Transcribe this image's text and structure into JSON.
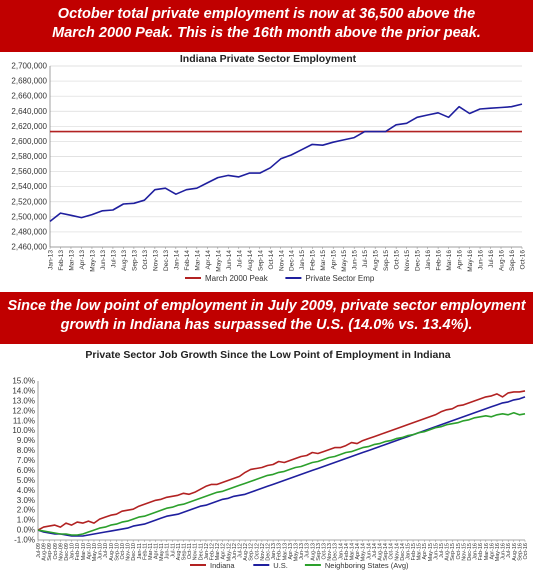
{
  "banners": {
    "top": [
      "October total private employment is now at 36,500 above the",
      "March 2000 Peak. This is the 16th  month above the prior peak."
    ],
    "middle": [
      "Since the low point of employment in July 2009, private sector employment",
      "growth in Indiana has surpassed the U.S. (14.0% vs. 13.4%)."
    ]
  },
  "colors": {
    "banner": "#c00000",
    "dark_red": "#b22222",
    "navy": "#1f1f9e",
    "green": "#2ca02c"
  },
  "chart_data": [
    {
      "type": "line",
      "title": "Indiana Private Sector Employment",
      "categories": [
        "Jan-13",
        "Feb-13",
        "Mar-13",
        "Apr-13",
        "May-13",
        "Jun-13",
        "Jul-13",
        "Aug-13",
        "Sep-13",
        "Oct-13",
        "Nov-13",
        "Dec-13",
        "Jan-14",
        "Feb-14",
        "Mar-14",
        "Apr-14",
        "May-14",
        "Jun-14",
        "Jul-14",
        "Aug-14",
        "Sep-14",
        "Oct-14",
        "Nov-14",
        "Dec-14",
        "Jan-15",
        "Feb-15",
        "Mar-15",
        "Apr-15",
        "May-15",
        "Jun-15",
        "Jul-15",
        "Aug-15",
        "Sep-15",
        "Oct-15",
        "Nov-15",
        "Dec-15",
        "Jan-16",
        "Feb-16",
        "Mar-16",
        "Apr-16",
        "May-16",
        "Jun-16",
        "Jul-16",
        "Aug-16",
        "Sep-16",
        "Oct-16"
      ],
      "series": [
        {
          "name": "March 2000 Peak",
          "color": "#b22222",
          "values": [
            2613000,
            2613000,
            2613000,
            2613000,
            2613000,
            2613000,
            2613000,
            2613000,
            2613000,
            2613000,
            2613000,
            2613000,
            2613000,
            2613000,
            2613000,
            2613000,
            2613000,
            2613000,
            2613000,
            2613000,
            2613000,
            2613000,
            2613000,
            2613000,
            2613000,
            2613000,
            2613000,
            2613000,
            2613000,
            2613000,
            2613000,
            2613000,
            2613000,
            2613000,
            2613000,
            2613000,
            2613000,
            2613000,
            2613000,
            2613000,
            2613000,
            2613000,
            2613000,
            2613000,
            2613000,
            2613000
          ]
        },
        {
          "name": "Private Sector Emp",
          "color": "#1f1f9e",
          "values": [
            2494000,
            2505000,
            2502000,
            2499000,
            2503000,
            2508000,
            2509000,
            2517000,
            2518000,
            2522000,
            2536000,
            2538000,
            2530000,
            2536000,
            2538000,
            2545000,
            2552000,
            2555000,
            2553000,
            2558000,
            2558000,
            2565000,
            2577000,
            2582000,
            2589000,
            2596000,
            2595000,
            2599000,
            2602000,
            2605000,
            2613000,
            2613000,
            2613000,
            2622000,
            2624000,
            2632000,
            2635000,
            2638000,
            2632000,
            2646000,
            2637000,
            2643000,
            2644000,
            2645000,
            2646000,
            2649500
          ]
        }
      ],
      "yticks": [
        "2,460,000",
        "2,480,000",
        "2,500,000",
        "2,520,000",
        "2,540,000",
        "2,560,000",
        "2,580,000",
        "2,600,000",
        "2,620,000",
        "2,640,000",
        "2,660,000",
        "2,680,000",
        "2,700,000"
      ],
      "ylim": [
        2460000,
        2700000
      ],
      "grid": true,
      "legend": "bottom"
    },
    {
      "type": "line",
      "title": "Private Sector Job Growth Since the Low Point of Employment in Indiana",
      "categories": [
        "Jul-09",
        "Aug-09",
        "Sep-09",
        "Oct-09",
        "Nov-09",
        "Dec-09",
        "Jan-10",
        "Feb-10",
        "Mar-10",
        "Apr-10",
        "May-10",
        "Jun-10",
        "Jul-10",
        "Aug-10",
        "Sep-10",
        "Oct-10",
        "Nov-10",
        "Dec-10",
        "Jan-11",
        "Feb-11",
        "Mar-11",
        "Apr-11",
        "May-11",
        "Jun-11",
        "Jul-11",
        "Aug-11",
        "Sep-11",
        "Oct-11",
        "Nov-11",
        "Dec-11",
        "Jan-12",
        "Feb-12",
        "Mar-12",
        "Apr-12",
        "May-12",
        "Jun-12",
        "Jul-12",
        "Aug-12",
        "Sep-12",
        "Oct-12",
        "Nov-12",
        "Dec-12",
        "Jan-13",
        "Feb-13",
        "Mar-13",
        "Apr-13",
        "May-13",
        "Jun-13",
        "Jul-13",
        "Aug-13",
        "Sep-13",
        "Oct-13",
        "Nov-13",
        "Dec-13",
        "Jan-14",
        "Feb-14",
        "Mar-14",
        "Apr-14",
        "May-14",
        "Jun-14",
        "Jul-14",
        "Aug-14",
        "Sep-14",
        "Oct-14",
        "Nov-14",
        "Dec-14",
        "Jan-15",
        "Feb-15",
        "Mar-15",
        "Apr-15",
        "May-15",
        "Jun-15",
        "Jul-15",
        "Aug-15",
        "Sep-15",
        "Oct-15",
        "Nov-15",
        "Dec-15",
        "Jan-16",
        "Feb-16",
        "Mar-16",
        "Apr-16",
        "May-16",
        "Jun-16",
        "Jul-16",
        "Aug-16",
        "Sep-16",
        "Oct-16"
      ],
      "series": [
        {
          "name": "Indiana",
          "color": "#b22222",
          "values": [
            0.0,
            0.3,
            0.4,
            0.5,
            0.3,
            0.7,
            0.5,
            0.8,
            0.7,
            0.9,
            0.7,
            1.1,
            1.3,
            1.5,
            1.6,
            1.9,
            2.0,
            2.1,
            2.4,
            2.6,
            2.8,
            3.0,
            3.1,
            3.3,
            3.4,
            3.5,
            3.7,
            3.6,
            3.8,
            4.1,
            4.4,
            4.6,
            4.6,
            4.8,
            5.0,
            5.2,
            5.4,
            5.8,
            6.1,
            6.2,
            6.3,
            6.5,
            6.6,
            6.9,
            6.8,
            7.0,
            7.2,
            7.4,
            7.5,
            7.8,
            7.7,
            7.9,
            8.1,
            8.3,
            8.3,
            8.5,
            8.8,
            8.7,
            9.0,
            9.2,
            9.4,
            9.6,
            9.8,
            10.0,
            10.2,
            10.4,
            10.6,
            10.8,
            11.0,
            11.2,
            11.4,
            11.6,
            11.9,
            12.1,
            12.2,
            12.5,
            12.6,
            12.8,
            13.0,
            13.2,
            13.4,
            13.5,
            13.7,
            13.4,
            13.8,
            13.9,
            13.9,
            14.0
          ]
        },
        {
          "name": "U.S.",
          "color": "#1f1f9e",
          "values": [
            0.0,
            -0.2,
            -0.3,
            -0.4,
            -0.4,
            -0.5,
            -0.6,
            -0.6,
            -0.6,
            -0.5,
            -0.4,
            -0.3,
            -0.2,
            -0.1,
            0.0,
            0.1,
            0.2,
            0.4,
            0.5,
            0.6,
            0.8,
            1.0,
            1.2,
            1.4,
            1.5,
            1.6,
            1.8,
            2.0,
            2.2,
            2.4,
            2.5,
            2.7,
            2.9,
            3.1,
            3.2,
            3.4,
            3.5,
            3.6,
            3.8,
            4.0,
            4.2,
            4.4,
            4.6,
            4.8,
            5.0,
            5.2,
            5.4,
            5.6,
            5.8,
            6.0,
            6.2,
            6.4,
            6.6,
            6.8,
            7.0,
            7.2,
            7.4,
            7.6,
            7.8,
            8.0,
            8.2,
            8.4,
            8.6,
            8.8,
            9.0,
            9.2,
            9.4,
            9.6,
            9.8,
            10.0,
            10.2,
            10.4,
            10.6,
            10.8,
            11.0,
            11.2,
            11.4,
            11.6,
            11.8,
            12.0,
            12.2,
            12.4,
            12.6,
            12.8,
            12.9,
            13.1,
            13.2,
            13.4
          ]
        },
        {
          "name": "Neighboring States (Avg)",
          "color": "#2ca02c",
          "values": [
            0.0,
            -0.1,
            -0.2,
            -0.3,
            -0.4,
            -0.4,
            -0.5,
            -0.5,
            -0.4,
            -0.2,
            0.0,
            0.2,
            0.3,
            0.5,
            0.6,
            0.8,
            0.9,
            1.1,
            1.3,
            1.4,
            1.6,
            1.8,
            2.0,
            2.2,
            2.3,
            2.5,
            2.6,
            2.8,
            3.0,
            3.2,
            3.4,
            3.6,
            3.8,
            3.9,
            4.1,
            4.3,
            4.5,
            4.7,
            4.9,
            5.1,
            5.3,
            5.5,
            5.6,
            5.8,
            5.9,
            6.1,
            6.3,
            6.4,
            6.6,
            6.8,
            6.9,
            7.1,
            7.3,
            7.4,
            7.6,
            7.8,
            7.9,
            8.1,
            8.3,
            8.4,
            8.6,
            8.7,
            8.9,
            9.0,
            9.2,
            9.3,
            9.5,
            9.6,
            9.8,
            9.9,
            10.1,
            10.3,
            10.4,
            10.6,
            10.7,
            10.8,
            11.0,
            11.1,
            11.3,
            11.4,
            11.5,
            11.4,
            11.6,
            11.7,
            11.6,
            11.8,
            11.6,
            11.7
          ]
        }
      ],
      "yticks": [
        "-1.0%",
        "0.0%",
        "1.0%",
        "2.0%",
        "3.0%",
        "4.0%",
        "5.0%",
        "6.0%",
        "7.0%",
        "8.0%",
        "9.0%",
        "10.0%",
        "11.0%",
        "12.0%",
        "13.0%",
        "14.0%",
        "15.0%"
      ],
      "ylim": [
        -1,
        15
      ],
      "grid": false,
      "legend": "bottom"
    }
  ]
}
